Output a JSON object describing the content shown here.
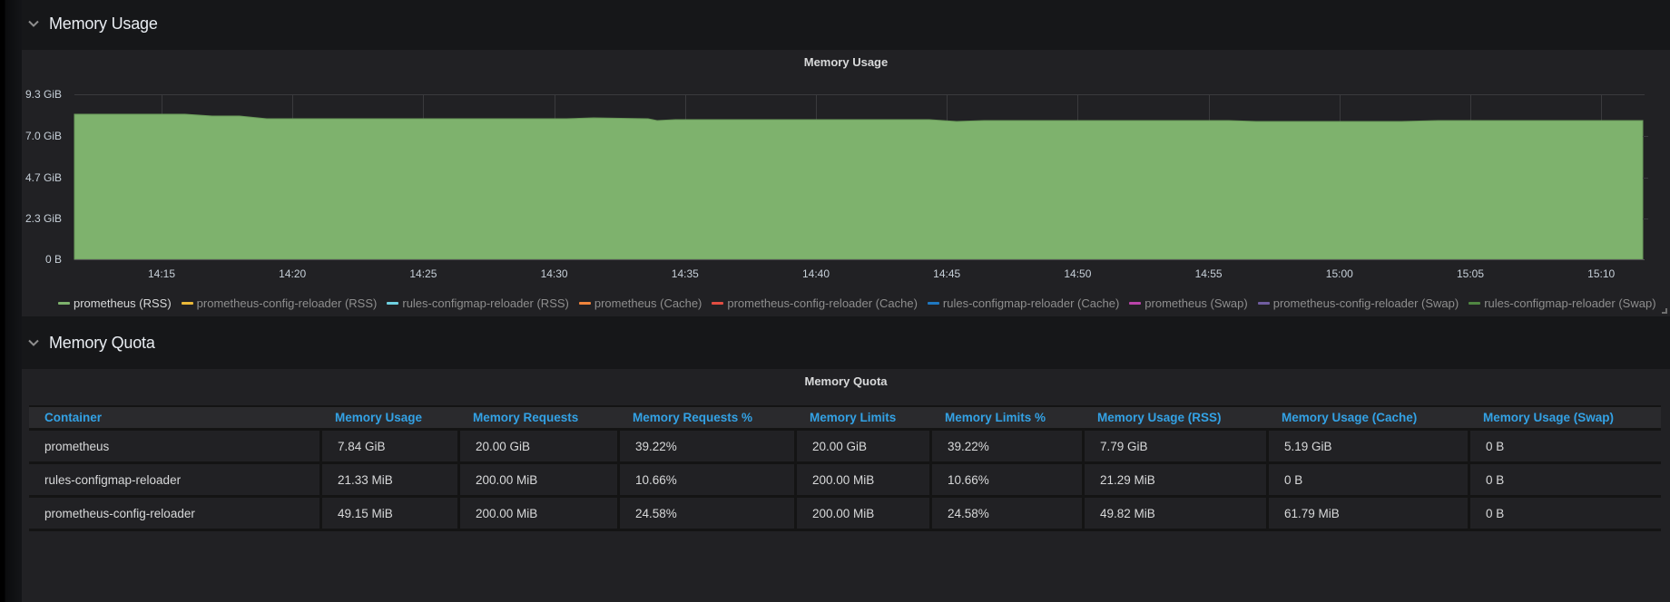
{
  "rows": [
    {
      "title": "Memory Usage",
      "collapsed": false
    },
    {
      "title": "Memory Quota",
      "collapsed": false
    }
  ],
  "memory_usage_panel": {
    "title": "Memory Usage",
    "y_axis_labels": [
      "9.3 GiB",
      "7.0 GiB",
      "4.7 GiB",
      "2.3 GiB",
      "0 B"
    ],
    "x_axis_labels": [
      "14:15",
      "14:20",
      "14:25",
      "14:30",
      "14:35",
      "14:40",
      "14:45",
      "14:50",
      "14:55",
      "15:00",
      "15:05",
      "15:10"
    ],
    "legend": [
      {
        "label": "prometheus (RSS)",
        "color": "#7eb26d",
        "active": true
      },
      {
        "label": "prometheus-config-reloader (RSS)",
        "color": "#eab839",
        "active": false
      },
      {
        "label": "rules-configmap-reloader (RSS)",
        "color": "#6ed0e0",
        "active": false
      },
      {
        "label": "prometheus (Cache)",
        "color": "#ef843c",
        "active": false
      },
      {
        "label": "prometheus-config-reloader (Cache)",
        "color": "#e24d42",
        "active": false
      },
      {
        "label": "rules-configmap-reloader (Cache)",
        "color": "#1f78c1",
        "active": false
      },
      {
        "label": "prometheus (Swap)",
        "color": "#ba43a9",
        "active": false
      },
      {
        "label": "prometheus-config-reloader (Swap)",
        "color": "#705da0",
        "active": false
      },
      {
        "label": "rules-configmap-reloader (Swap)",
        "color": "#508642",
        "active": false
      }
    ]
  },
  "memory_quota_panel": {
    "title": "Memory Quota",
    "columns": [
      "Container",
      "Memory Usage",
      "Memory Requests",
      "Memory Requests %",
      "Memory Limits",
      "Memory Limits %",
      "Memory Usage (RSS)",
      "Memory Usage (Cache)",
      "Memory Usage (Swap)"
    ],
    "rows": [
      [
        "prometheus",
        "7.84 GiB",
        "20.00 GiB",
        "39.22%",
        "20.00 GiB",
        "39.22%",
        "7.79 GiB",
        "5.19 GiB",
        "0 B"
      ],
      [
        "rules-configmap-reloader",
        "21.33 MiB",
        "200.00 MiB",
        "10.66%",
        "200.00 MiB",
        "10.66%",
        "21.29 MiB",
        "0 B",
        "0 B"
      ],
      [
        "prometheus-config-reloader",
        "49.15 MiB",
        "200.00 MiB",
        "24.58%",
        "200.00 MiB",
        "24.58%",
        "49.82 MiB",
        "61.79 MiB",
        "0 B"
      ]
    ]
  },
  "chart_data": {
    "type": "area",
    "title": "Memory Usage",
    "xlabel": "",
    "ylabel": "",
    "y_ticks": [
      "0 B",
      "2.3 GiB",
      "4.7 GiB",
      "7.0 GiB",
      "9.3 GiB"
    ],
    "ylim_gib": [
      0,
      9.3
    ],
    "x": [
      "14:11",
      "14:15",
      "14:20",
      "14:25",
      "14:30",
      "14:35",
      "14:40",
      "14:45",
      "14:50",
      "14:55",
      "15:00",
      "15:05",
      "15:10",
      "15:12"
    ],
    "grid": true,
    "legend_position": "bottom",
    "series": [
      {
        "name": "prometheus (RSS)",
        "color": "#7eb26d",
        "unit": "GiB",
        "values": [
          8.1,
          8.1,
          7.9,
          7.9,
          7.9,
          7.8,
          7.8,
          7.8,
          7.8,
          7.8,
          7.8,
          7.8,
          7.8,
          7.8
        ]
      },
      {
        "name": "prometheus-config-reloader (RSS)",
        "color": "#eab839",
        "unit": "GiB",
        "values": []
      },
      {
        "name": "rules-configmap-reloader (RSS)",
        "color": "#6ed0e0",
        "unit": "GiB",
        "values": []
      },
      {
        "name": "prometheus (Cache)",
        "color": "#ef843c",
        "unit": "GiB",
        "values": []
      },
      {
        "name": "prometheus-config-reloader (Cache)",
        "color": "#e24d42",
        "unit": "GiB",
        "values": []
      },
      {
        "name": "rules-configmap-reloader (Cache)",
        "color": "#1f78c1",
        "unit": "GiB",
        "values": []
      },
      {
        "name": "prometheus (Swap)",
        "color": "#ba43a9",
        "unit": "GiB",
        "values": []
      },
      {
        "name": "prometheus-config-reloader (Swap)",
        "color": "#705da0",
        "unit": "GiB",
        "values": []
      },
      {
        "name": "rules-configmap-reloader (Swap)",
        "color": "#508642",
        "unit": "GiB",
        "values": []
      }
    ]
  }
}
